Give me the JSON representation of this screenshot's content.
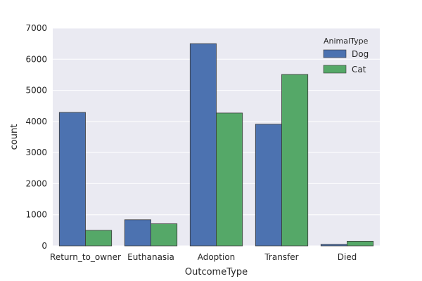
{
  "chart_data": {
    "type": "bar",
    "title": "",
    "xlabel": "OutcomeType",
    "ylabel": "count",
    "categories": [
      "Return_to_owner",
      "Euthanasia",
      "Adoption",
      "Transfer",
      "Died"
    ],
    "series": [
      {
        "name": "Dog",
        "values": [
          4290,
          840,
          6500,
          3910,
          50
        ],
        "color": "#4c72b0"
      },
      {
        "name": "Cat",
        "values": [
          500,
          710,
          4270,
          5510,
          150
        ],
        "color": "#55a868"
      }
    ],
    "ylim": [
      0,
      7000
    ],
    "yticks": [
      0,
      1000,
      2000,
      3000,
      4000,
      5000,
      6000,
      7000
    ],
    "grid": true,
    "legend": {
      "title": "AnimalType",
      "position": "top-right"
    },
    "colors": {
      "plot_background": "#eaeaf2",
      "grid": "#ffffff"
    }
  }
}
